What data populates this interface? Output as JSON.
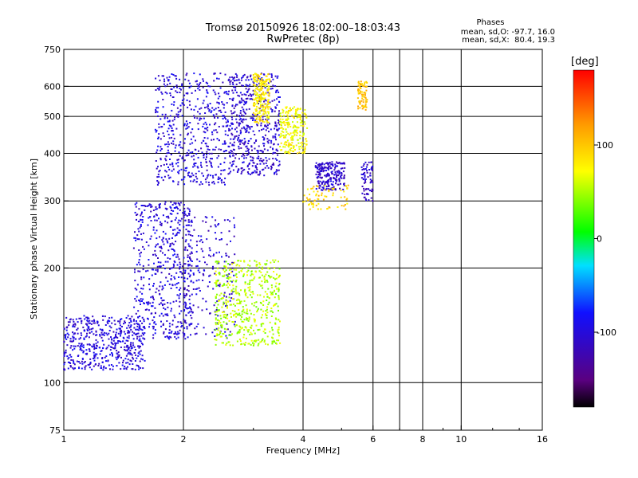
{
  "header": {
    "title_line1": "Tromsø 20150926 18:02:00–18:03:43",
    "title_line2": "RwPretec (8p)"
  },
  "info_box": {
    "heading": "Phases",
    "line1": "mean, sd,O: -97.7, 16.0",
    "line2": "mean, sd,X:  80.4, 19.3"
  },
  "colorbar": {
    "unit": "[deg]",
    "tick_labels": [
      "100",
      "0",
      "-100"
    ],
    "tick_values": [
      100,
      0,
      -100
    ],
    "range": [
      -180,
      180
    ],
    "colormap": "rainbow (black-purple-blue-cyan-green-yellow-orange-red)"
  },
  "chart_data": {
    "type": "scatter",
    "title": "Tromsø 20150926 18:02:00–18:03:43",
    "subtitle": "RwPretec (8p)",
    "xlabel": "Frequency [MHz]",
    "ylabel": "Stationary phase Virtual Height [km]",
    "x_scale": "log",
    "y_scale": "log",
    "xlim": [
      1,
      16
    ],
    "ylim": [
      75,
      750
    ],
    "x_ticks": [
      1,
      2,
      4,
      6,
      8,
      10,
      16
    ],
    "x_tick_labels": [
      "1",
      "2",
      "4",
      "6",
      "8",
      "10",
      "16"
    ],
    "y_ticks": [
      75,
      100,
      200,
      300,
      400,
      500,
      600,
      750
    ],
    "y_tick_labels": [
      "75",
      "100",
      "200",
      "300",
      "400",
      "500",
      "600",
      "750"
    ],
    "vertical_grid": [
      2,
      4,
      6,
      7,
      8,
      10
    ],
    "horizontal_grid": [
      100,
      200,
      300,
      400,
      500,
      600
    ],
    "grid": true,
    "color_variable": "phase [deg]",
    "series": [
      {
        "name": "O",
        "clusters": [
          {
            "freq": [
              1.0,
              1.6
            ],
            "height": [
              108,
              150
            ],
            "phase": -100,
            "density": "high"
          },
          {
            "freq": [
              1.5,
              2.1
            ],
            "height": [
              130,
              300
            ],
            "phase": -100,
            "density": "high"
          },
          {
            "freq": [
              1.7,
              2.6
            ],
            "height": [
              330,
              650
            ],
            "phase": -100,
            "density": "high"
          },
          {
            "freq": [
              2.0,
              2.7
            ],
            "height": [
              130,
              280
            ],
            "phase": -105,
            "density": "medium"
          },
          {
            "freq": [
              2.6,
              3.5
            ],
            "height": [
              350,
              650
            ],
            "phase": -105,
            "density": "high"
          },
          {
            "freq": [
              4.3,
              5.1
            ],
            "height": [
              320,
              380
            ],
            "phase": -110,
            "density": "medium"
          },
          {
            "freq": [
              5.6,
              6.0
            ],
            "height": [
              300,
              380
            ],
            "phase": -110,
            "density": "low"
          }
        ]
      },
      {
        "name": "X",
        "clusters": [
          {
            "freq": [
              2.4,
              3.5
            ],
            "height": [
              125,
              210
            ],
            "phase": 50,
            "density": "high"
          },
          {
            "freq": [
              3.0,
              3.3
            ],
            "height": [
              480,
              650
            ],
            "phase": 80,
            "density": "medium"
          },
          {
            "freq": [
              3.5,
              4.1
            ],
            "height": [
              400,
              530
            ],
            "phase": 70,
            "density": "medium"
          },
          {
            "freq": [
              4.0,
              5.2
            ],
            "height": [
              285,
              330
            ],
            "phase": 90,
            "density": "low"
          },
          {
            "freq": [
              5.5,
              5.8
            ],
            "height": [
              520,
              620
            ],
            "phase": 100,
            "density": "low"
          }
        ]
      }
    ]
  }
}
